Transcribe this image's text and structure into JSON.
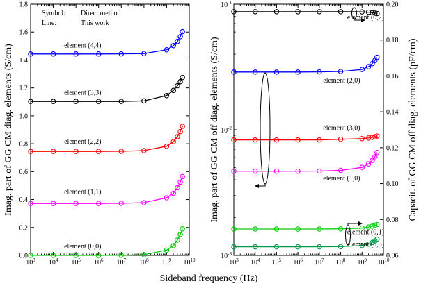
{
  "chart_data": [
    {
      "type": "line",
      "xscale": "log",
      "xlim": [
        1000,
        10000000000
      ],
      "ylim": [
        0,
        1.8
      ],
      "ylabel": "Imag. part of GG CM diag. elements (S/cm)",
      "xticks": [
        "10^3",
        "10^4",
        "10^5",
        "10^6",
        "10^7",
        "10^8",
        "10^9",
        "10^10"
      ],
      "yticks": [
        "0.0",
        "0.2",
        "0.4",
        "0.6",
        "0.8",
        "1.0",
        "1.2",
        "1.4",
        "1.6",
        "1.8"
      ],
      "legend_note": {
        "symbol_key": "Symbol:",
        "symbol_val": "Direct method",
        "line_key": "Line:",
        "line_val": "This work"
      },
      "series": [
        {
          "name": "element (4,4)",
          "color": "#0000ff",
          "label_anchor": [
            30000.0,
            1.49
          ],
          "x": [
            1000,
            10000,
            100000,
            1000000,
            10000000,
            100000000,
            1000000000,
            2000000000,
            3000000000,
            4000000000,
            5000000000
          ],
          "y": [
            1.443,
            1.443,
            1.443,
            1.443,
            1.444,
            1.446,
            1.473,
            1.503,
            1.533,
            1.567,
            1.603
          ]
        },
        {
          "name": "element (3,3)",
          "color": "#000000",
          "label_anchor": [
            30000.0,
            1.15
          ],
          "x": [
            1000,
            10000,
            100000,
            1000000,
            10000000,
            100000000,
            1000000000,
            2000000000,
            3000000000,
            4000000000,
            5000000000
          ],
          "y": [
            1.103,
            1.103,
            1.103,
            1.103,
            1.103,
            1.107,
            1.145,
            1.182,
            1.215,
            1.245,
            1.275
          ]
        },
        {
          "name": "element (2,2)",
          "color": "#ff0000",
          "label_anchor": [
            30000.0,
            0.8
          ],
          "x": [
            1000,
            10000,
            100000,
            1000000,
            10000000,
            100000000,
            1000000000,
            2000000000,
            3000000000,
            4000000000,
            5000000000
          ],
          "y": [
            0.745,
            0.745,
            0.745,
            0.745,
            0.746,
            0.751,
            0.782,
            0.815,
            0.85,
            0.887,
            0.925
          ]
        },
        {
          "name": "element (1,1)",
          "color": "#ff00ff",
          "label_anchor": [
            30000.0,
            0.44
          ],
          "x": [
            1000,
            10000,
            100000,
            1000000,
            10000000,
            100000000,
            1000000000,
            2000000000,
            3000000000,
            4000000000,
            5000000000
          ],
          "y": [
            0.372,
            0.372,
            0.372,
            0.372,
            0.373,
            0.378,
            0.413,
            0.445,
            0.485,
            0.525,
            0.565
          ]
        },
        {
          "name": "element (0,0)",
          "color": "#00cc00",
          "label_anchor": [
            30000.0,
            0.05
          ],
          "x": [
            1000,
            10000,
            100000,
            1000000,
            10000000,
            100000000,
            1000000000,
            2000000000,
            3000000000,
            4000000000,
            5000000000
          ],
          "y": [
            0.0,
            0.0,
            0.0,
            0.0,
            0.001,
            0.005,
            0.038,
            0.07,
            0.11,
            0.15,
            0.19
          ]
        }
      ]
    },
    {
      "type": "line",
      "xscale": "log",
      "yscale": "log",
      "xlim": [
        1000,
        10000000000
      ],
      "ylim": [
        0.001,
        0.1
      ],
      "y2lim": [
        0.06,
        0.2
      ],
      "ylabel": "Imag. part of GG CM off diag. elements (S/cm)",
      "y2label": "Capacit. of GG CM off diag. elements (pF/cm)",
      "xticks": [
        "10^3",
        "10^4",
        "10^5",
        "10^6",
        "10^7",
        "10^8",
        "10^9",
        "10^10"
      ],
      "yticks": [
        "10^-3",
        "10^-2",
        "10^-1"
      ],
      "y2ticks": [
        "0.06",
        "0.08",
        "0.10",
        "0.12",
        "0.14",
        "0.16",
        "0.18",
        "0.20"
      ],
      "series": [
        {
          "name": "element (0,2)",
          "color": "#000000",
          "axis": "right",
          "label_anchor": [
            200000000.0,
            0.0755
          ],
          "x": [
            1000,
            10000,
            100000,
            1000000,
            10000000,
            100000000,
            1000000000,
            2000000000,
            3000000000,
            4000000000,
            5000000000
          ],
          "y": [
            0.1958,
            0.1958,
            0.1958,
            0.1958,
            0.1958,
            0.1958,
            0.1957,
            0.1955,
            0.1952,
            0.195,
            0.1948
          ]
        },
        {
          "name": "element (2,0)",
          "color": "#0000ff",
          "axis": "left",
          "label_anchor": [
            15000000.0,
            0.0237
          ],
          "x": [
            1000,
            10000,
            100000,
            1000000,
            10000000,
            100000000,
            1000000000,
            2000000000,
            3000000000,
            4000000000,
            5000000000
          ],
          "y": [
            0.0288,
            0.0288,
            0.0288,
            0.0288,
            0.0289,
            0.0291,
            0.0302,
            0.0318,
            0.0336,
            0.0356,
            0.0377
          ]
        },
        {
          "name": "element (3,0)",
          "color": "#ff0000",
          "axis": "left",
          "label_anchor": [
            15000000.0,
            0.00995
          ],
          "x": [
            1000,
            10000,
            100000,
            1000000,
            10000000,
            100000000,
            1000000000,
            2000000000,
            3000000000,
            4000000000,
            5000000000
          ],
          "y": [
            0.0083,
            0.0083,
            0.0083,
            0.0083,
            0.0083,
            0.0084,
            0.0085,
            0.0086,
            0.0087,
            0.0088,
            0.0089
          ]
        },
        {
          "name": "element (1,0)",
          "color": "#ff00ff",
          "axis": "left",
          "label_anchor": [
            15000000.0,
            0.00395
          ],
          "x": [
            1000,
            10000,
            100000,
            1000000,
            10000000,
            100000000,
            1000000000,
            2000000000,
            3000000000,
            4000000000,
            5000000000
          ],
          "y": [
            0.00468,
            0.00468,
            0.00468,
            0.00468,
            0.00469,
            0.00475,
            0.00502,
            0.00535,
            0.0057,
            0.0061,
            0.0066
          ]
        },
        {
          "name": "element (0,1)",
          "color": "#00cc00",
          "axis": "right",
          "label_anchor": [
            200000000.0,
            0.00147
          ],
          "x": [
            1000,
            10000,
            100000,
            1000000,
            10000000,
            100000000,
            1000000000,
            2000000000,
            3000000000,
            4000000000,
            5000000000
          ],
          "y": [
            0.0747,
            0.0747,
            0.0747,
            0.0747,
            0.0747,
            0.0748,
            0.0752,
            0.0758,
            0.0763,
            0.0768,
            0.0772
          ]
        },
        {
          "name": "element (0,3)",
          "color": "#009944",
          "axis": "right",
          "label_anchor": [
            200000000.0,
            0.00118
          ],
          "x": [
            1000,
            10000,
            100000,
            1000000,
            10000000,
            100000000,
            1000000000,
            2000000000,
            3000000000,
            4000000000,
            5000000000
          ],
          "y": [
            0.0648,
            0.0648,
            0.0648,
            0.0648,
            0.0648,
            0.0649,
            0.0655,
            0.0663,
            0.0672,
            0.0681,
            0.069
          ]
        }
      ]
    }
  ],
  "xlabel": "Sideband frequency (Hz)"
}
